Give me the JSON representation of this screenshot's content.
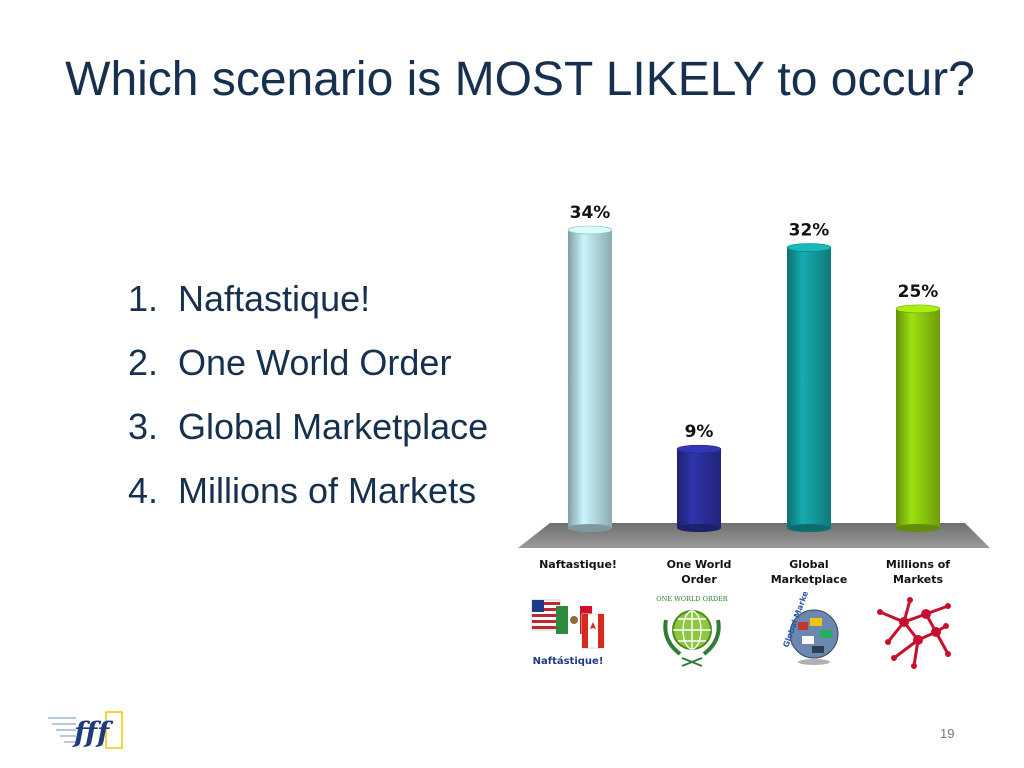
{
  "title": "Which scenario is MOST LIKELY to occur?",
  "options": [
    {
      "num": "1.",
      "label": "Naftastique!"
    },
    {
      "num": "2.",
      "label": "One World Order"
    },
    {
      "num": "3.",
      "label": "Global Marketplace"
    },
    {
      "num": "4.",
      "label": "Millions of Markets"
    }
  ],
  "chart_data": {
    "type": "bar",
    "categories": [
      "Naftastique!",
      "One World Order",
      "Global Marketplace",
      "Millions of Markets"
    ],
    "category_lines": [
      [
        "Naftastique!"
      ],
      [
        "One World",
        "Order"
      ],
      [
        "Global",
        "Marketplace"
      ],
      [
        "Millions of",
        "Markets"
      ]
    ],
    "values": [
      34,
      9,
      32,
      25
    ],
    "value_labels": [
      "34%",
      "9%",
      "32%",
      "25%"
    ],
    "colors": [
      "#b4dbe2",
      "#2a2e99",
      "#149a9c",
      "#8cc80e"
    ],
    "ylim": [
      0,
      34
    ],
    "grid": false,
    "legend": "none"
  },
  "images": [
    {
      "name": "naftastique-flags-image",
      "text": "Naftástique!"
    },
    {
      "name": "one-world-order-seal-image",
      "text": "ONE WORLD ORDER"
    },
    {
      "name": "global-marketplace-globe-image",
      "text": "Global Marketplace"
    },
    {
      "name": "millions-of-markets-network-image",
      "text": ""
    }
  ],
  "page_number": "19",
  "logo_text": "fff"
}
